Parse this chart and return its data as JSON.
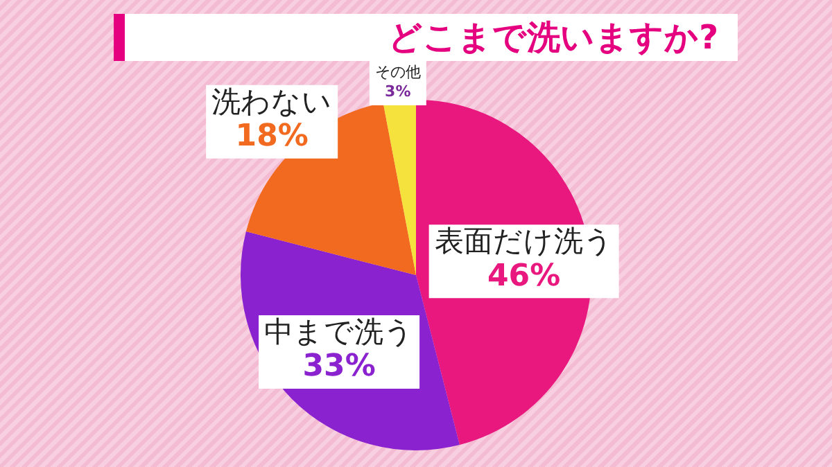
{
  "chart_data": {
    "type": "pie",
    "title": "どこまで洗いますか?",
    "categories": [
      "表面だけ洗う",
      "中まで洗う",
      "洗わない",
      "その他"
    ],
    "values": [
      46,
      33,
      18,
      3
    ],
    "colors": [
      "#e8187f",
      "#8a22cf",
      "#f26a1f",
      "#f6e23c"
    ],
    "value_labels": [
      "46%",
      "33%",
      "18%",
      "3%"
    ],
    "legend": false
  }
}
